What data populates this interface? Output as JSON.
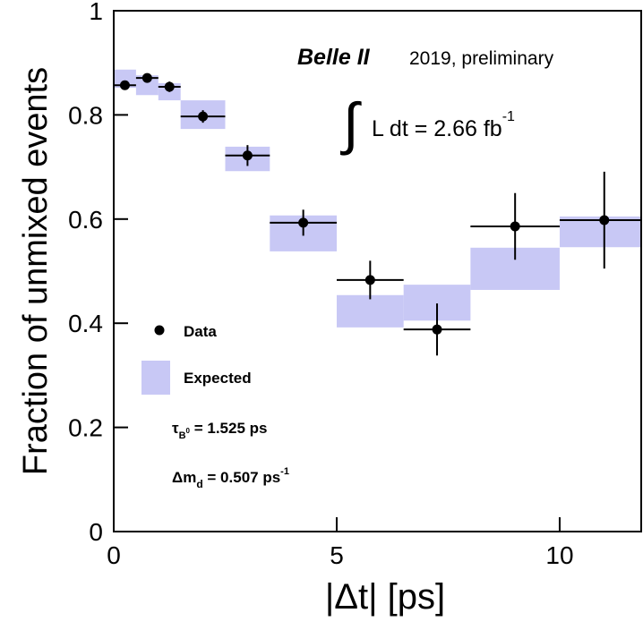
{
  "chart_data": {
    "type": "errorbar",
    "x_label": "|Δt| [ps]",
    "y_label": "Fraction of unmixed events",
    "title": "Belle II",
    "subtitle": "2019, preliminary",
    "luminosity": {
      "integral": "∫",
      "text": "L dt = 2.66 fb",
      "sup": "-1"
    },
    "lifetime": {
      "symbol": "τ",
      "sub": "B",
      "subsup": "0",
      "text": " = 1.525 ps"
    },
    "mixing": {
      "symbol": "Δm",
      "sub": "d",
      "text": " = 0.507 ps",
      "sup": "-1"
    },
    "xlim": [
      0,
      11.8
    ],
    "ylim": [
      0,
      1
    ],
    "xticks": [
      0,
      5,
      10
    ],
    "yticks": [
      0,
      0.2,
      0.4,
      0.6,
      0.8,
      1
    ],
    "bins": [
      0,
      0.5,
      1,
      1.5,
      2.5,
      3.5,
      5,
      6.5,
      8,
      10,
      12
    ],
    "series": [
      {
        "name": "Data",
        "color": "#000000",
        "x": [
          0.25,
          0.75,
          1.25,
          2,
          3,
          4.25,
          5.75,
          7.25,
          9,
          11
        ],
        "values": [
          0.857,
          0.871,
          0.854,
          0.797,
          0.722,
          0.593,
          0.483,
          0.388,
          0.586,
          0.598
        ],
        "yerr": [
          0.006,
          0.007,
          0.01,
          0.012,
          0.02,
          0.025,
          0.037,
          0.05,
          0.064,
          0.093
        ]
      },
      {
        "name": "Expected",
        "color": "#c8c8f5",
        "low": [
          0.852,
          0.838,
          0.828,
          0.773,
          0.692,
          0.538,
          0.392,
          0.405,
          0.464,
          0.546
        ],
        "high": [
          0.887,
          0.876,
          0.861,
          0.828,
          0.739,
          0.607,
          0.454,
          0.474,
          0.545,
          0.605
        ]
      }
    ]
  }
}
